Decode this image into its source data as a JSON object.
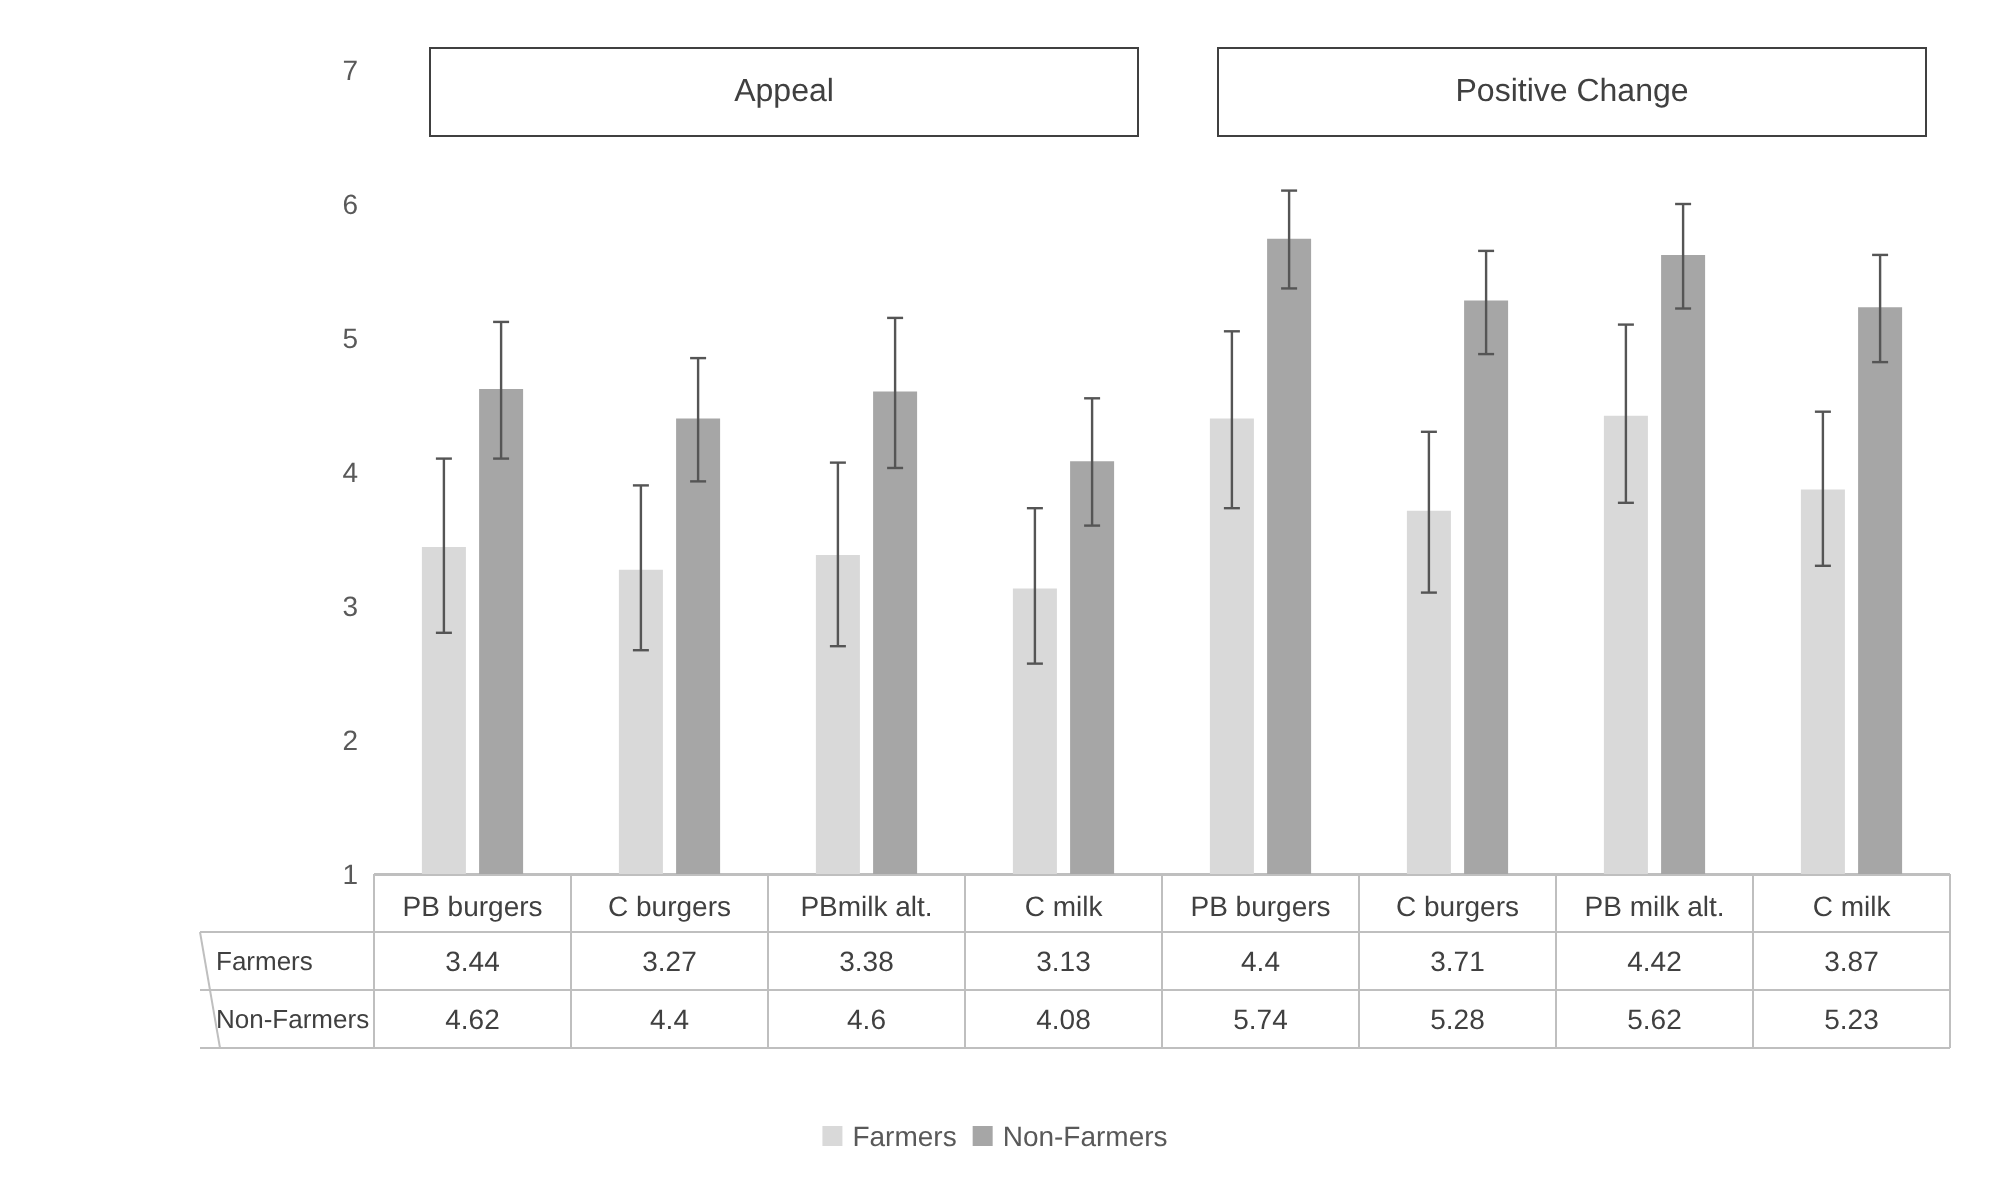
{
  "chart_data": {
    "type": "bar",
    "categories": [
      "PB burgers",
      "C burgers",
      "PBmilk alt.",
      "C milk",
      "PB burgers",
      "C burgers",
      "PB milk alt.",
      "C milk"
    ],
    "series": [
      {
        "name": "Farmers",
        "color": "#d9d9d9",
        "values": [
          3.44,
          3.27,
          3.38,
          3.13,
          4.4,
          3.71,
          4.42,
          3.87
        ],
        "errors": [
          [
            2.8,
            4.1
          ],
          [
            2.67,
            3.9
          ],
          [
            2.7,
            4.07
          ],
          [
            2.57,
            3.73
          ],
          [
            3.73,
            5.05
          ],
          [
            3.1,
            4.3
          ],
          [
            3.77,
            5.1
          ],
          [
            3.3,
            4.45
          ]
        ]
      },
      {
        "name": "Non-Farmers",
        "color": "#a6a6a6",
        "values": [
          4.62,
          4.4,
          4.6,
          4.08,
          5.74,
          5.28,
          5.62,
          5.23
        ],
        "errors": [
          [
            4.1,
            5.12
          ],
          [
            3.93,
            4.85
          ],
          [
            4.03,
            5.15
          ],
          [
            3.6,
            4.55
          ],
          [
            5.37,
            6.1
          ],
          [
            4.88,
            5.65
          ],
          [
            5.22,
            6.0
          ],
          [
            4.82,
            5.62
          ]
        ]
      }
    ],
    "ylim": [
      1,
      7
    ],
    "yticks": [
      1,
      2,
      3,
      4,
      5,
      6,
      7
    ],
    "grid": false,
    "legend": "bottom",
    "data_labels": true,
    "annotations": [
      "Appeal",
      "Positive Change"
    ]
  }
}
